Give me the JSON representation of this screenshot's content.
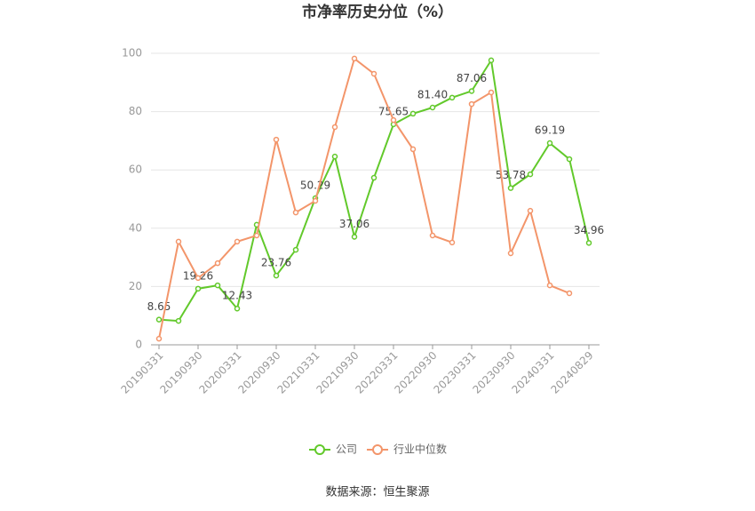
{
  "chart_data": {
    "type": "line",
    "title": "市净率历史分位（%）",
    "source": "数据来源：恒生聚源",
    "categories": [
      "20190331",
      null,
      "20190930",
      null,
      "20200331",
      null,
      "20200930",
      null,
      "20210331",
      null,
      "20210930",
      null,
      "20220331",
      null,
      "20220930",
      null,
      "20230331",
      null,
      "20230930",
      null,
      "20240331",
      null,
      "20240829"
    ],
    "series": [
      {
        "name": "公司",
        "color": "#62c92b",
        "values": [
          8.65,
          8.2,
          19.26,
          20.4,
          12.43,
          41.2,
          23.76,
          32.6,
          50.29,
          64.6,
          37.06,
          57.3,
          75.65,
          79.3,
          81.4,
          84.8,
          87.06,
          97.6,
          53.78,
          58.5,
          69.19,
          63.7,
          34.96
        ],
        "value_labels": [
          "8.65",
          null,
          "19.26",
          null,
          "12.43",
          null,
          "23.76",
          null,
          "50.29",
          null,
          "37.06",
          null,
          "75.65",
          null,
          "81.40",
          null,
          "87.06",
          null,
          "53.78",
          null,
          "69.19",
          null,
          "34.96"
        ]
      },
      {
        "name": "行业中位数",
        "color": "#f3956a",
        "values": [
          2.1,
          35.4,
          22.9,
          28.0,
          35.4,
          37.5,
          70.4,
          45.4,
          49.4,
          74.7,
          98.2,
          93.0,
          77.1,
          67.1,
          37.5,
          35.1,
          82.6,
          86.6,
          31.4,
          46.0,
          20.4,
          17.7,
          null
        ]
      }
    ],
    "ylim": [
      0,
      100
    ],
    "yticks": [
      0,
      20,
      40,
      60,
      80,
      100
    ],
    "grid": true,
    "legend": "bottom"
  }
}
